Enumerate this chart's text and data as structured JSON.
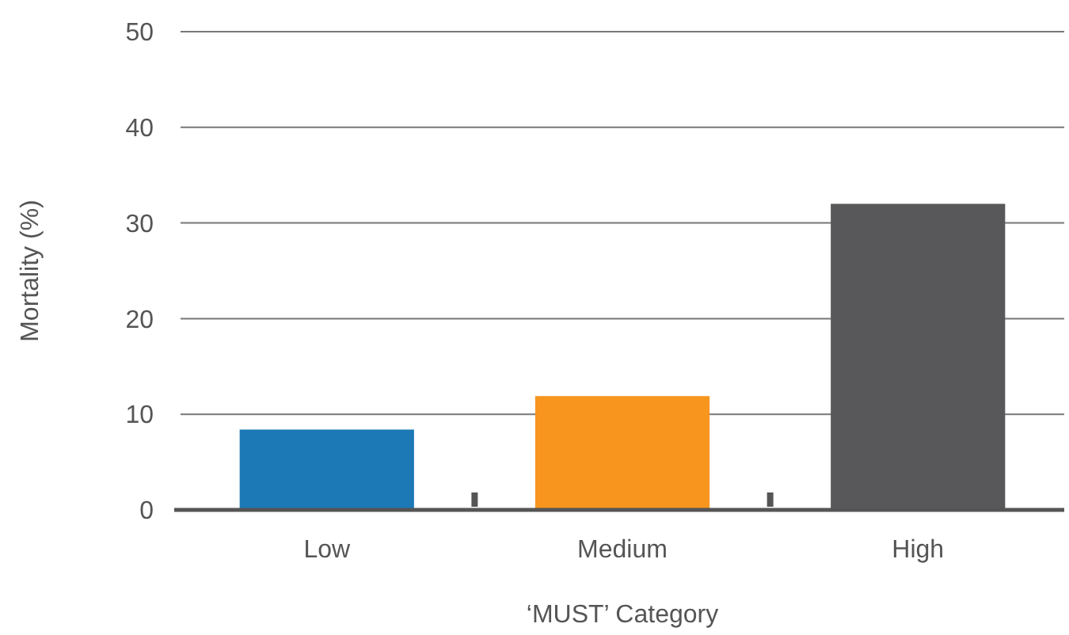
{
  "chart_data": {
    "type": "bar",
    "xlabel": "‘MUST’ Category",
    "ylabel": "Mortality (%)",
    "categories": [
      "Low",
      "Medium",
      "High"
    ],
    "values": [
      8.4,
      11.9,
      32.0
    ],
    "colors": [
      "#1c79b6",
      "#f7951f",
      "#58585a"
    ],
    "ylim": [
      0,
      50
    ],
    "yticks": [
      0,
      10,
      20,
      30,
      40,
      50
    ],
    "grid": "y"
  }
}
